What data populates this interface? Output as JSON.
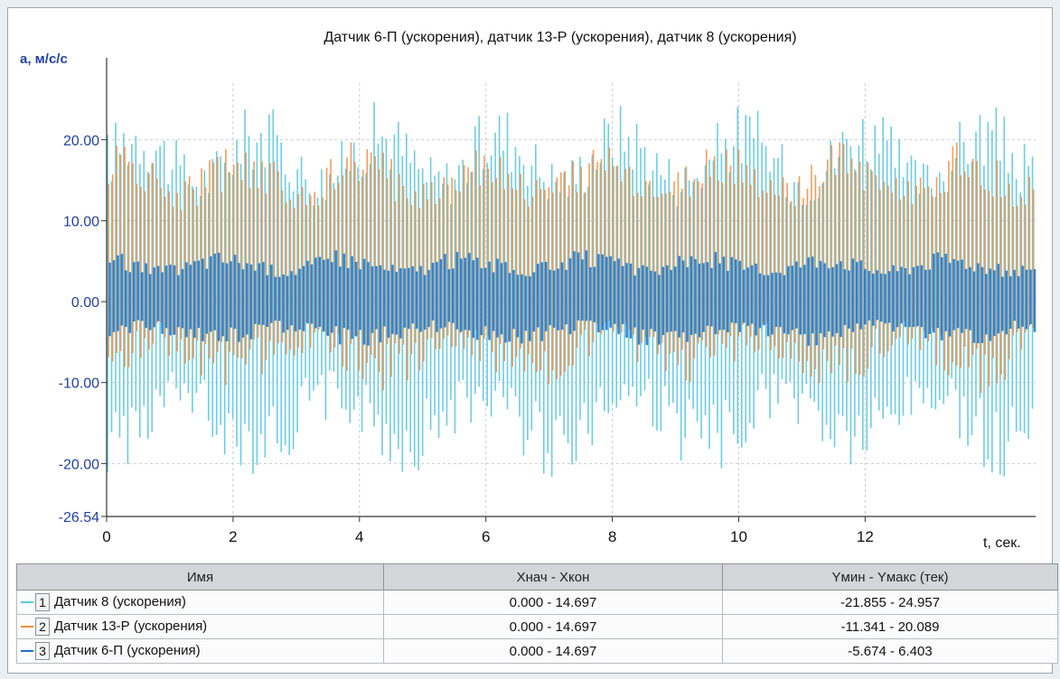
{
  "colors": {
    "series1": "#5cc8e0",
    "series2": "#f08c3c",
    "series3": "#1e6fc8",
    "axis_text": "#2340a8"
  },
  "chart_data": {
    "type": "line",
    "title": "Датчик 6-П (ускорения), датчик 13-Р (ускорения), датчик 8 (ускорения)",
    "ylabel": "a, м/с/с",
    "xlabel": "t, сек.",
    "xlim": [
      0,
      14.697
    ],
    "ylim": [
      -26.54,
      27
    ],
    "x_ticks": [
      "0",
      "2",
      "4",
      "6",
      "8",
      "10",
      "12"
    ],
    "y_ticks": [
      {
        "value": 20,
        "label": "20.00"
      },
      {
        "value": 10,
        "label": "10.00"
      },
      {
        "value": 0,
        "label": "0.00"
      },
      {
        "value": -10,
        "label": "-10.00"
      },
      {
        "value": -20,
        "label": "-20.00"
      },
      {
        "value": -26.54,
        "label": "-26.54"
      }
    ],
    "grid": true,
    "series": [
      {
        "name": "Датчик 8 (ускорения)",
        "color": "#5cc8e0",
        "ymin": -21.855,
        "ymax": 24.957
      },
      {
        "name": "Датчик 13-Р (ускорения)",
        "color": "#f08c3c",
        "ymin": -11.341,
        "ymax": 20.089
      },
      {
        "name": "Датчик 6-П (ускорения)",
        "color": "#1e6fc8",
        "ymin": -5.674,
        "ymax": 6.403
      }
    ]
  },
  "legend": {
    "headers": [
      "Имя",
      "Хнач - Хкон",
      "Yмин - Yмакс (тек)"
    ],
    "rows": [
      {
        "num": "1",
        "name": "Датчик 8 (ускорения)",
        "xrange": "0.000 - 14.697",
        "yrange": "-21.855 - 24.957"
      },
      {
        "num": "2",
        "name": "Датчик 13-Р (ускорения)",
        "xrange": "0.000 - 14.697",
        "yrange": "-11.341 - 20.089"
      },
      {
        "num": "3",
        "name": "Датчик 6-П (ускорения)",
        "xrange": "0.000 - 14.697",
        "yrange": "-5.674 - 6.403"
      }
    ]
  }
}
